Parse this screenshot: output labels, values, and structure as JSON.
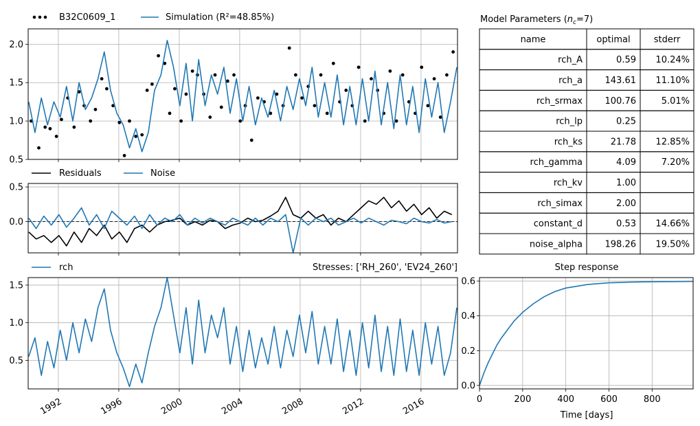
{
  "chart_data": [
    {
      "type": "line",
      "panel": "head",
      "x_axis": "date",
      "xlim": [
        "1990-01-01",
        "2018-06-01"
      ],
      "ylim": [
        0.5,
        2.2
      ],
      "yticks": [
        0.5,
        1.0,
        1.5,
        2.0
      ],
      "grid": true,
      "legend_placement": "top-left, above axes",
      "legend": [
        "B32C0609_1",
        "Simulation (R²=48.85%)"
      ],
      "series": [
        {
          "name": "B32C0609_1",
          "style": "dots",
          "color": "#000000",
          "x": [
            "1990-03",
            "1990-09",
            "1991-02",
            "1991-06",
            "1991-11",
            "1992-03",
            "1992-08",
            "1993-01",
            "1993-05",
            "1993-09",
            "1994-02",
            "1994-06",
            "1994-11",
            "1995-03",
            "1995-08",
            "1996-01",
            "1996-05",
            "1996-09",
            "1997-02",
            "1997-07",
            "1997-11",
            "1998-03",
            "1998-08",
            "1999-01",
            "1999-05",
            "1999-09",
            "2000-02",
            "2000-06",
            "2000-11",
            "2001-03",
            "2001-08",
            "2002-01",
            "2002-05",
            "2002-10",
            "2003-03",
            "2003-08",
            "2004-01",
            "2004-05",
            "2004-10",
            "2005-03",
            "2005-08",
            "2006-01",
            "2006-06",
            "2006-11",
            "2007-04",
            "2007-09",
            "2008-02",
            "2008-07",
            "2008-12",
            "2009-05",
            "2009-10",
            "2010-03",
            "2010-08",
            "2011-01",
            "2011-06",
            "2011-11",
            "2012-04",
            "2012-09",
            "2013-02",
            "2013-07",
            "2013-12",
            "2014-05",
            "2014-10",
            "2015-03",
            "2015-08",
            "2016-01",
            "2016-06",
            "2016-11",
            "2017-04",
            "2017-09",
            "2018-02"
          ],
          "y": [
            1.0,
            0.65,
            0.92,
            0.9,
            0.8,
            1.02,
            1.3,
            0.92,
            1.38,
            1.2,
            1.0,
            1.15,
            1.55,
            1.42,
            1.2,
            0.98,
            0.55,
            1.0,
            0.8,
            0.82,
            1.4,
            1.48,
            1.85,
            1.75,
            1.1,
            1.42,
            1.0,
            1.35,
            1.65,
            1.6,
            1.35,
            1.05,
            1.6,
            1.18,
            1.52,
            1.6,
            1.0,
            1.2,
            0.75,
            1.3,
            1.25,
            1.1,
            1.35,
            1.2,
            1.95,
            1.6,
            1.3,
            1.45,
            1.2,
            1.6,
            1.1,
            1.75,
            1.25,
            1.4,
            1.2,
            1.7,
            1.0,
            1.55,
            1.4,
            1.1,
            1.65,
            1.0,
            1.6,
            1.25,
            1.1,
            1.7,
            1.2,
            1.55,
            1.05,
            1.6,
            1.9
          ]
        },
        {
          "name": "Simulation (R²=48.85%)",
          "style": "line",
          "color": "#1f77b4",
          "x": [
            "1990-01",
            "1990-06",
            "1990-11",
            "1991-04",
            "1991-09",
            "1992-02",
            "1992-07",
            "1992-12",
            "1993-05",
            "1993-10",
            "1994-03",
            "1994-08",
            "1995-01",
            "1995-06",
            "1995-11",
            "1996-04",
            "1996-09",
            "1997-02",
            "1997-07",
            "1997-12",
            "1998-05",
            "1998-10",
            "1999-03",
            "1999-08",
            "2000-01",
            "2000-06",
            "2000-11",
            "2001-04",
            "2001-09",
            "2002-02",
            "2002-07",
            "2002-12",
            "2003-05",
            "2003-10",
            "2004-03",
            "2004-08",
            "2005-01",
            "2005-06",
            "2005-11",
            "2006-04",
            "2006-09",
            "2007-02",
            "2007-07",
            "2007-12",
            "2008-05",
            "2008-10",
            "2009-03",
            "2009-08",
            "2010-01",
            "2010-06",
            "2010-11",
            "2011-04",
            "2011-09",
            "2012-02",
            "2012-07",
            "2012-12",
            "2013-05",
            "2013-10",
            "2014-03",
            "2014-08",
            "2015-01",
            "2015-06",
            "2015-11",
            "2016-04",
            "2016-09",
            "2017-02",
            "2017-07",
            "2017-12",
            "2018-05"
          ],
          "y": [
            1.25,
            0.85,
            1.3,
            0.95,
            1.25,
            1.05,
            1.45,
            1.0,
            1.5,
            1.15,
            1.3,
            1.55,
            1.9,
            1.4,
            1.1,
            0.95,
            0.65,
            0.9,
            0.6,
            0.85,
            1.4,
            1.6,
            2.05,
            1.7,
            1.2,
            1.75,
            1.0,
            1.8,
            1.2,
            1.6,
            1.35,
            1.7,
            1.1,
            1.55,
            1.0,
            1.45,
            0.95,
            1.3,
            1.05,
            1.4,
            1.0,
            1.45,
            1.15,
            1.55,
            1.2,
            1.7,
            1.05,
            1.5,
            1.05,
            1.6,
            0.95,
            1.45,
            0.95,
            1.55,
            1.0,
            1.65,
            0.95,
            1.5,
            0.9,
            1.6,
            0.95,
            1.45,
            0.85,
            1.55,
            1.05,
            1.5,
            0.85,
            1.25,
            1.7
          ]
        }
      ]
    },
    {
      "type": "line",
      "panel": "residuals",
      "x_axis": "date",
      "xlim": [
        "1990-01-01",
        "2018-06-01"
      ],
      "ylim": [
        -0.45,
        0.55
      ],
      "yticks": [
        0.0,
        0.5
      ],
      "grid": true,
      "legend_placement": "top-left, above axes",
      "legend": [
        "Residuals",
        "Noise"
      ],
      "series": [
        {
          "name": "Residuals",
          "color": "#000000",
          "x": [
            "1990-01",
            "1990-07",
            "1991-01",
            "1991-07",
            "1992-01",
            "1992-07",
            "1993-01",
            "1993-07",
            "1994-01",
            "1994-07",
            "1995-01",
            "1995-07",
            "1996-01",
            "1996-07",
            "1997-01",
            "1997-07",
            "1998-01",
            "1998-07",
            "1999-01",
            "1999-07",
            "2000-01",
            "2000-07",
            "2001-01",
            "2001-07",
            "2002-01",
            "2002-07",
            "2003-01",
            "2003-07",
            "2004-01",
            "2004-07",
            "2005-01",
            "2005-07",
            "2006-01",
            "2006-07",
            "2007-01",
            "2007-07",
            "2008-01",
            "2008-07",
            "2009-01",
            "2009-07",
            "2010-01",
            "2010-07",
            "2011-01",
            "2011-07",
            "2012-01",
            "2012-07",
            "2013-01",
            "2013-07",
            "2014-01",
            "2014-07",
            "2015-01",
            "2015-07",
            "2016-01",
            "2016-07",
            "2017-01",
            "2017-07",
            "2018-01"
          ],
          "y": [
            -0.15,
            -0.25,
            -0.2,
            -0.3,
            -0.2,
            -0.35,
            -0.15,
            -0.3,
            -0.1,
            -0.2,
            -0.05,
            -0.25,
            -0.15,
            -0.3,
            -0.1,
            -0.05,
            -0.15,
            -0.05,
            0.0,
            0.02,
            0.05,
            -0.05,
            0.0,
            -0.05,
            0.02,
            0.0,
            -0.1,
            -0.05,
            -0.02,
            0.05,
            0.0,
            0.02,
            0.08,
            0.15,
            0.35,
            0.1,
            0.05,
            0.15,
            0.05,
            0.1,
            -0.05,
            0.05,
            0.0,
            0.1,
            0.2,
            0.3,
            0.25,
            0.35,
            0.2,
            0.3,
            0.15,
            0.25,
            0.1,
            0.2,
            0.05,
            0.15,
            0.1
          ]
        },
        {
          "name": "Noise",
          "color": "#1f77b4",
          "x": [
            "1990-01",
            "1990-07",
            "1991-01",
            "1991-07",
            "1992-01",
            "1992-07",
            "1993-01",
            "1993-07",
            "1994-01",
            "1994-07",
            "1995-01",
            "1995-07",
            "1996-01",
            "1996-07",
            "1997-01",
            "1997-07",
            "1998-01",
            "1998-07",
            "1999-01",
            "1999-07",
            "2000-01",
            "2000-07",
            "2001-01",
            "2001-07",
            "2002-01",
            "2002-07",
            "2003-01",
            "2003-07",
            "2004-01",
            "2004-07",
            "2005-01",
            "2005-07",
            "2006-01",
            "2006-07",
            "2007-01",
            "2007-07",
            "2008-01",
            "2008-07",
            "2009-01",
            "2009-07",
            "2010-01",
            "2010-07",
            "2011-01",
            "2011-07",
            "2012-01",
            "2012-07",
            "2013-01",
            "2013-07",
            "2014-01",
            "2014-07",
            "2015-01",
            "2015-07",
            "2016-01",
            "2016-07",
            "2017-01",
            "2017-07",
            "2018-01"
          ],
          "y": [
            0.05,
            -0.1,
            0.08,
            -0.05,
            0.1,
            -0.08,
            0.05,
            0.2,
            -0.05,
            0.1,
            -0.1,
            0.15,
            0.05,
            -0.05,
            0.08,
            -0.1,
            0.1,
            -0.05,
            0.05,
            0.0,
            0.1,
            -0.05,
            0.05,
            -0.02,
            0.05,
            0.0,
            -0.05,
            0.05,
            0.0,
            -0.05,
            0.05,
            -0.05,
            0.05,
            0.0,
            0.1,
            -0.45,
            0.05,
            -0.05,
            0.05,
            0.0,
            0.05,
            -0.05,
            0.0,
            0.05,
            -0.02,
            0.05,
            0.0,
            -0.05,
            0.02,
            0.0,
            -0.03,
            0.05,
            0.0,
            -0.02,
            0.03,
            -0.02,
            0.0
          ]
        }
      ]
    },
    {
      "type": "line",
      "panel": "contribution",
      "x_axis": "date",
      "xlim": [
        "1990-01-01",
        "2018-06-01"
      ],
      "ylim": [
        0.12,
        1.6
      ],
      "yticks": [
        0.5,
        1.0,
        1.5
      ],
      "xticks": [
        "1992",
        "1996",
        "2000",
        "2004",
        "2008",
        "2012",
        "2016"
      ],
      "grid": true,
      "legend_placement": "top-left, above axes",
      "legend": [
        "rch"
      ],
      "title_right": "Stresses: ['RH_260', 'EV24_260']",
      "series": [
        {
          "name": "rch",
          "color": "#1f77b4",
          "x": [
            "1990-01",
            "1990-06",
            "1990-11",
            "1991-04",
            "1991-09",
            "1992-02",
            "1992-07",
            "1992-12",
            "1993-05",
            "1993-10",
            "1994-03",
            "1994-08",
            "1995-01",
            "1995-06",
            "1995-11",
            "1996-04",
            "1996-09",
            "1997-02",
            "1997-07",
            "1997-12",
            "1998-05",
            "1998-10",
            "1999-03",
            "1999-08",
            "2000-01",
            "2000-06",
            "2000-11",
            "2001-04",
            "2001-09",
            "2002-02",
            "2002-07",
            "2002-12",
            "2003-05",
            "2003-10",
            "2004-03",
            "2004-08",
            "2005-01",
            "2005-06",
            "2005-11",
            "2006-04",
            "2006-09",
            "2007-02",
            "2007-07",
            "2007-12",
            "2008-05",
            "2008-10",
            "2009-03",
            "2009-08",
            "2010-01",
            "2010-06",
            "2010-11",
            "2011-04",
            "2011-09",
            "2012-02",
            "2012-07",
            "2012-12",
            "2013-05",
            "2013-10",
            "2014-03",
            "2014-08",
            "2015-01",
            "2015-06",
            "2015-11",
            "2016-04",
            "2016-09",
            "2017-02",
            "2017-07",
            "2017-12",
            "2018-05"
          ],
          "y": [
            0.55,
            0.8,
            0.3,
            0.75,
            0.4,
            0.9,
            0.5,
            1.0,
            0.6,
            1.05,
            0.75,
            1.2,
            1.45,
            0.9,
            0.6,
            0.4,
            0.15,
            0.45,
            0.2,
            0.6,
            0.95,
            1.2,
            1.6,
            1.1,
            0.6,
            1.2,
            0.45,
            1.3,
            0.6,
            1.1,
            0.8,
            1.2,
            0.45,
            0.95,
            0.35,
            0.9,
            0.4,
            0.8,
            0.45,
            0.95,
            0.4,
            0.9,
            0.55,
            1.1,
            0.6,
            1.15,
            0.45,
            0.95,
            0.45,
            1.05,
            0.35,
            0.9,
            0.3,
            1.0,
            0.4,
            1.1,
            0.35,
            0.95,
            0.3,
            1.05,
            0.35,
            0.9,
            0.3,
            1.0,
            0.45,
            0.95,
            0.3,
            0.6,
            1.2
          ]
        }
      ]
    },
    {
      "type": "line",
      "panel": "step-response",
      "title": "Step response",
      "xlabel": "Time [days]",
      "xlim": [
        0,
        990
      ],
      "ylim": [
        -0.02,
        0.62
      ],
      "xticks": [
        0,
        200,
        400,
        600,
        800
      ],
      "yticks": [
        0.0,
        0.2,
        0.4,
        0.6
      ],
      "grid": true,
      "series": [
        {
          "name": "",
          "color": "#1f77b4",
          "x": [
            0,
            20,
            40,
            60,
            80,
            100,
            130,
            160,
            200,
            250,
            300,
            350,
            400,
            450,
            500,
            600,
            700,
            800,
            900,
            990
          ],
          "y": [
            0.0,
            0.07,
            0.13,
            0.18,
            0.23,
            0.27,
            0.32,
            0.37,
            0.42,
            0.47,
            0.51,
            0.54,
            0.56,
            0.57,
            0.58,
            0.59,
            0.594,
            0.596,
            0.597,
            0.598
          ]
        }
      ]
    },
    {
      "type": "table",
      "panel": "parameters",
      "title": "Model Parameters (n_c=7)",
      "columns": [
        "name",
        "optimal",
        "stderr"
      ],
      "rows": [
        [
          "rch_A",
          "0.59",
          "10.24%"
        ],
        [
          "rch_a",
          "143.61",
          "11.10%"
        ],
        [
          "rch_srmax",
          "100.76",
          "5.01%"
        ],
        [
          "rch_lp",
          "0.25",
          ""
        ],
        [
          "rch_ks",
          "21.78",
          "12.85%"
        ],
        [
          "rch_gamma",
          "4.09",
          "7.20%"
        ],
        [
          "rch_kv",
          "1.00",
          ""
        ],
        [
          "rch_simax",
          "2.00",
          ""
        ],
        [
          "constant_d",
          "0.53",
          "14.66%"
        ],
        [
          "noise_alpha",
          "198.26",
          "19.50%"
        ]
      ]
    }
  ]
}
